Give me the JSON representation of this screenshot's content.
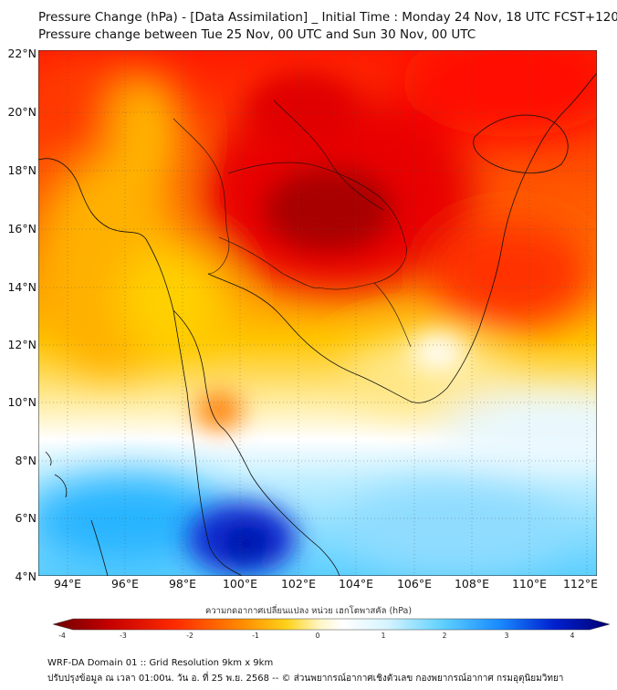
{
  "header": {
    "title_line1": "Pressure Change (hPa) - [Data Assimilation] _ Initial Time : Monday 24 Nov, 18 UTC FCST+120",
    "title_line2": "Pressure change between Tue 25 Nov, 00 UTC and Sun 30 Nov, 00 UTC"
  },
  "map": {
    "lat_labels": [
      "22°N",
      "20°N",
      "18°N",
      "16°N",
      "14°N",
      "12°N",
      "10°N",
      "8°N",
      "6°N",
      "4°N"
    ],
    "lon_labels": [
      "94°E",
      "96°E",
      "98°E",
      "100°E",
      "102°E",
      "104°E",
      "106°E",
      "108°E",
      "110°E",
      "112°E"
    ],
    "lat_range": [
      4,
      22
    ],
    "lon_range": [
      93,
      112.3
    ]
  },
  "colorbar": {
    "title": "ความกดอากาศเปลี่ยนแปลง หน่วย เฮกโตพาสคัล (hPa)",
    "ticks": [
      "-4",
      "-3",
      "-2",
      "-1",
      "0",
      "1",
      "2",
      "3",
      "4"
    ],
    "range": [
      -4,
      4
    ],
    "colors": [
      "#6b0000",
      "#c40000",
      "#ff2a00",
      "#ff8c00",
      "#ffd21a",
      "#fff6c8",
      "#ffffff",
      "#d6f4ff",
      "#5fd0ff",
      "#1a8cff",
      "#0020d0",
      "#000070"
    ]
  },
  "footer": {
    "line1": "WRF-DA Domain 01 :: Grid Resolution 9km x 9km",
    "line2": "ปรับปรุงข้อมูล ณ เวลา 01:00น. วัน อ. ที่ 25 พ.ย. 2568 -- © ส่วนพยากรณ์อากาศเชิงตัวเลข กองพยากรณ์อากาศ กรมอุตุนิยมวิทยา"
  }
}
